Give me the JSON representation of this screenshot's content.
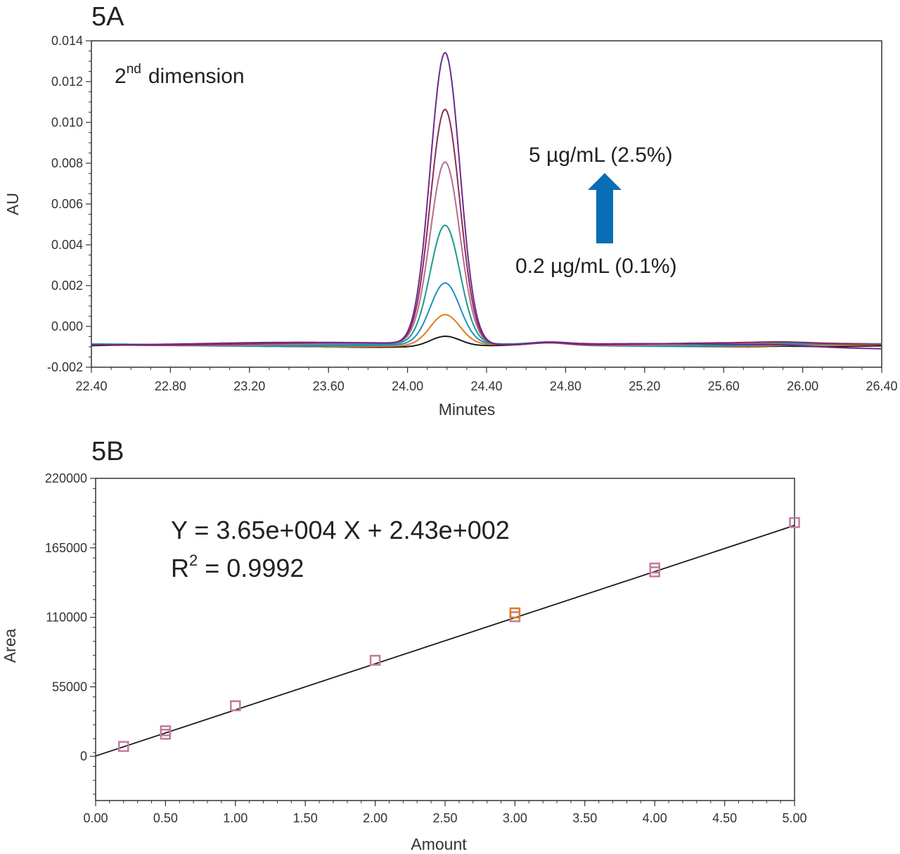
{
  "chart_data": [
    {
      "panel_label": "5A",
      "type": "line",
      "annotation_dimension": "dimension",
      "annotation_dimension_number": "2",
      "annotation_dimension_sup": "nd",
      "annotation_high": "5 µg/mL (2.5%)",
      "annotation_low": "0.2 µg/mL (0.1%)",
      "arrow_color": "#0a6eb5",
      "xlabel": "Minutes",
      "ylabel": "AU",
      "xlim": [
        22.4,
        26.4
      ],
      "ylim": [
        -0.002,
        0.014
      ],
      "x_ticks": [
        "22.40",
        "22.80",
        "23.20",
        "23.60",
        "24.00",
        "24.40",
        "24.80",
        "25.20",
        "25.60",
        "26.00",
        "26.40"
      ],
      "y_ticks": [
        "-0.002",
        "0.000",
        "0.002",
        "0.004",
        "0.006",
        "0.008",
        "0.010",
        "0.012",
        "0.014"
      ],
      "peak_center": 24.19,
      "peak_width_sigma": 0.075,
      "baseline": -0.0009,
      "series": [
        {
          "color": "#1a1a1a",
          "peak_height": -0.0004
        },
        {
          "color": "#e07b20",
          "peak_height": 0.0006
        },
        {
          "color": "#1f8fc2",
          "peak_height": 0.0021
        },
        {
          "color": "#1b9a90",
          "peak_height": 0.0049
        },
        {
          "color": "#b76d90",
          "peak_height": 0.008
        },
        {
          "color": "#8e2a5a",
          "peak_height": 0.0106
        },
        {
          "color": "#6c2a8c",
          "peak_height": 0.0134
        }
      ]
    },
    {
      "panel_label": "5B",
      "type": "scatter",
      "equation": "Y = 3.65e+004 X + 2.43e+002",
      "r2_label": "R",
      "r2_sup": "2",
      "r2_value": " = 0.9992",
      "xlabel": "Amount",
      "ylabel": "Area",
      "xlim": [
        0.0,
        5.0
      ],
      "ylim": [
        -35000,
        220000
      ],
      "x_ticks": [
        "0.00",
        "0.50",
        "1.00",
        "1.50",
        "2.00",
        "2.50",
        "3.00",
        "3.50",
        "4.00",
        "4.50",
        "5.00"
      ],
      "y_ticks": [
        "0",
        "55000",
        "110000",
        "165000",
        "220000"
      ],
      "fit": {
        "slope": 36500,
        "intercept": 243
      },
      "marker_color": "#c47a9c",
      "highlight_color": "#e07b20",
      "points": [
        {
          "x": 0.2,
          "y": 7800
        },
        {
          "x": 0.5,
          "y": 17500
        },
        {
          "x": 0.5,
          "y": 20200
        },
        {
          "x": 1.0,
          "y": 40000
        },
        {
          "x": 2.0,
          "y": 76000
        },
        {
          "x": 3.0,
          "y": 110500
        },
        {
          "x": 3.0,
          "y": 113500,
          "highlight": true
        },
        {
          "x": 4.0,
          "y": 146000
        },
        {
          "x": 4.0,
          "y": 149000
        },
        {
          "x": 5.0,
          "y": 185000
        }
      ]
    }
  ]
}
